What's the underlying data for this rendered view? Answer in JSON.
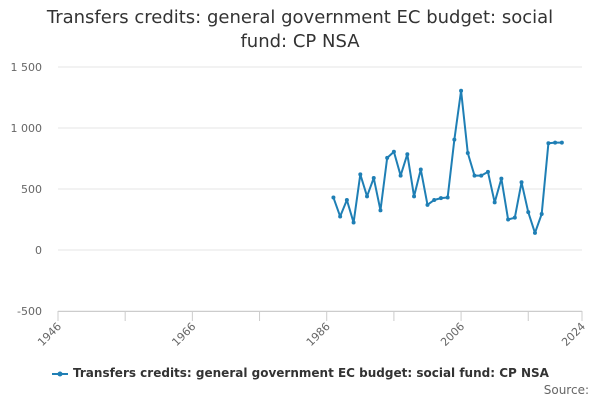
{
  "chart_data": {
    "type": "line",
    "title": "Transfers credits: general government EC budget: social fund: CP NSA",
    "xlabel": "",
    "ylabel": "",
    "x_ticks": [
      "1946",
      "1966",
      "1986",
      "2006",
      "2024"
    ],
    "y_ticks": [
      "1 500",
      "1 000",
      "500",
      "0",
      "-500"
    ],
    "xlim": [
      1946,
      2024
    ],
    "ylim": [
      -500,
      1500
    ],
    "grid": true,
    "legend_position": "bottom",
    "series": [
      {
        "name": "Transfers credits: general government EC budget: social fund: CP NSA",
        "color": "#1f7fb5",
        "x": [
          1987,
          1988,
          1989,
          1990,
          1991,
          1992,
          1993,
          1994,
          1995,
          1996,
          1997,
          1998,
          1999,
          2000,
          2001,
          2002,
          2003,
          2004,
          2005,
          2006,
          2007,
          2008,
          2009,
          2010,
          2011,
          2012,
          2013,
          2014,
          2015,
          2016,
          2017,
          2018,
          2019,
          2020,
          2021
        ],
        "y": [
          430,
          275,
          410,
          225,
          620,
          440,
          590,
          325,
          755,
          805,
          610,
          785,
          440,
          660,
          370,
          410,
          425,
          430,
          905,
          1305,
          795,
          610,
          610,
          640,
          390,
          585,
          250,
          265,
          555,
          310,
          140,
          295,
          875,
          880,
          880
        ]
      }
    ]
  },
  "source_label": "Source:"
}
